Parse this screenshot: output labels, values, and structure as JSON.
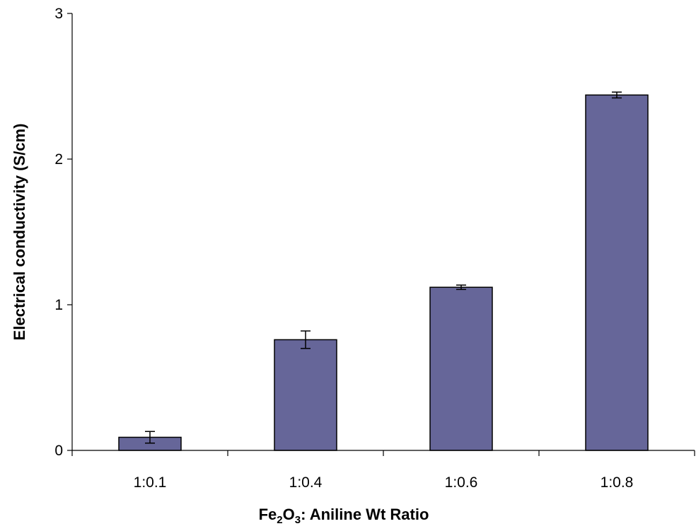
{
  "chart_data": {
    "type": "bar",
    "title": "",
    "categories": [
      "1:0.1",
      "1:0.4",
      "1:0.6",
      "1:0.8"
    ],
    "values": [
      0.09,
      0.76,
      1.12,
      2.44
    ],
    "errors": [
      0.04,
      0.06,
      0.015,
      0.02
    ],
    "xlabel": {
      "part1": "Fe",
      "sub1": "2",
      "part2": "O",
      "sub2": "3",
      "part3": ": Aniline Wt Ratio"
    },
    "ylabel": "Electrical conductivity (S/cm)",
    "ylim": [
      0,
      3
    ],
    "yticks": [
      "0",
      "1",
      "2",
      "3"
    ],
    "grid": false,
    "bar_color": "#666699",
    "bar_edge_color": "#000000"
  }
}
